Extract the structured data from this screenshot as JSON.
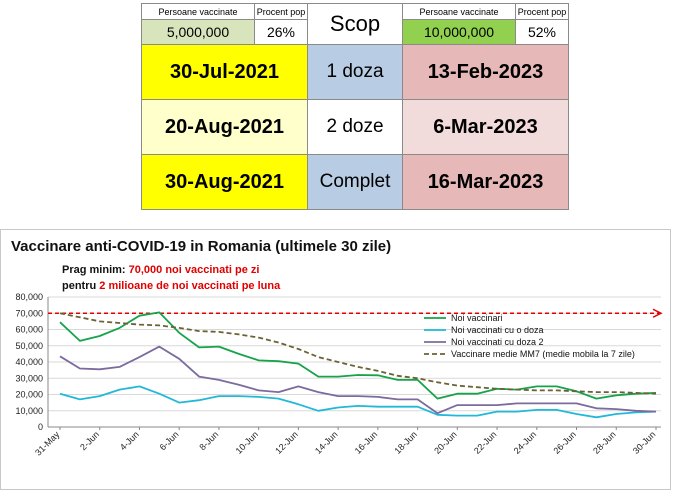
{
  "summary_table": {
    "left_header": "Persoane vaccinate",
    "left_pct_header": "Procent pop",
    "right_header": "Persoane vaccinate",
    "right_pct_header": "Procent pop",
    "left_value": "5,000,000",
    "left_pct": "26%",
    "right_value": "10,000,000",
    "right_pct": "52%",
    "scop": "Scop",
    "rows": [
      {
        "left_date": "30-Jul-2021",
        "label": "1 doza",
        "right_date": "13-Feb-2023"
      },
      {
        "left_date": "20-Aug-2021",
        "label": "2 doze",
        "right_date": "6-Mar-2023"
      },
      {
        "left_date": "30-Aug-2021",
        "label": "Complet",
        "right_date": "16-Mar-2023"
      }
    ],
    "colors": {
      "green_light": "#d8e4bc",
      "green_bright": "#92d050",
      "blue_light": "#b8cce4",
      "yellow": "#ffff00",
      "cream": "#ffffcc",
      "pink": "#e6b8b7",
      "pink_light": "#f2dcdb"
    }
  },
  "chart_data": {
    "type": "line",
    "title": "Vaccinare anti-COVID-19 in Romania (ultimele 30 zile)",
    "annotation_line1_prefix": "Prag minim: ",
    "annotation_line1_highlight": "70,000 noi vaccinati pe zi",
    "annotation_line2_prefix": "pentru ",
    "annotation_line2_highlight": "2 milioane de noi vaccinati pe luna",
    "threshold": 70000,
    "ylim": [
      0,
      80000
    ],
    "yticks": [
      0,
      10000,
      20000,
      30000,
      40000,
      50000,
      60000,
      70000,
      80000
    ],
    "ytick_labels": [
      "0",
      "10,000",
      "20,000",
      "30,000",
      "40,000",
      "50,000",
      "60,000",
      "70,000",
      "80,000"
    ],
    "x": [
      "31-May",
      "1-Jun",
      "2-Jun",
      "3-Jun",
      "4-Jun",
      "5-Jun",
      "6-Jun",
      "7-Jun",
      "8-Jun",
      "9-Jun",
      "10-Jun",
      "11-Jun",
      "12-Jun",
      "13-Jun",
      "14-Jun",
      "15-Jun",
      "16-Jun",
      "17-Jun",
      "18-Jun",
      "19-Jun",
      "20-Jun",
      "21-Jun",
      "22-Jun",
      "23-Jun",
      "24-Jun",
      "25-Jun",
      "26-Jun",
      "27-Jun",
      "28-Jun",
      "29-Jun",
      "30-Jun"
    ],
    "xtick_labels": [
      "31-May",
      "2-Jun",
      "4-Jun",
      "6-Jun",
      "8-Jun",
      "10-Jun",
      "12-Jun",
      "14-Jun",
      "16-Jun",
      "18-Jun",
      "20-Jun",
      "22-Jun",
      "24-Jun",
      "26-Jun",
      "28-Jun",
      "30-Jun"
    ],
    "legend_position": "right",
    "series": [
      {
        "name": "Noi vaccinari",
        "color": "#16a34a",
        "dash": "",
        "values": [
          64500,
          53000,
          56000,
          61000,
          68500,
          70500,
          58000,
          49000,
          49500,
          45000,
          41000,
          40500,
          39000,
          31000,
          31000,
          32000,
          31800,
          29000,
          29000,
          17500,
          20500,
          20500,
          23500,
          23000,
          25000,
          25000,
          22000,
          17500,
          19500,
          20500,
          21000
        ]
      },
      {
        "name": "Noi vaccinati cu o doza",
        "color": "#22b8d8",
        "dash": "",
        "values": [
          20500,
          17000,
          19000,
          23000,
          25000,
          20500,
          15000,
          16500,
          19000,
          19000,
          18500,
          17500,
          14000,
          10000,
          12000,
          13000,
          12500,
          12500,
          12500,
          7500,
          7000,
          7000,
          9500,
          9500,
          10500,
          10500,
          8000,
          6000,
          8000,
          9000,
          9500
        ]
      },
      {
        "name": "Noi vaccinati cu doza 2",
        "color": "#7b6b9e",
        "dash": "",
        "values": [
          43500,
          36000,
          35500,
          37000,
          43000,
          49500,
          42000,
          31000,
          29000,
          26000,
          22500,
          21500,
          25000,
          21500,
          19000,
          19000,
          18500,
          17000,
          17000,
          8500,
          13500,
          13500,
          13500,
          14500,
          14500,
          14500,
          14500,
          11500,
          11000,
          10000,
          9500
        ]
      },
      {
        "name": "Vaccinare medie MM7 (medie mobila la 7 zile)",
        "color": "#6b6234",
        "dash": "5,3",
        "values": [
          70000,
          67500,
          65000,
          64000,
          63000,
          62500,
          61000,
          59000,
          58500,
          57000,
          55000,
          52000,
          48000,
          43000,
          40000,
          37000,
          34500,
          31500,
          30000,
          27500,
          25500,
          24500,
          23500,
          23000,
          22500,
          22500,
          22000,
          21500,
          21500,
          21000,
          20500
        ]
      }
    ]
  }
}
